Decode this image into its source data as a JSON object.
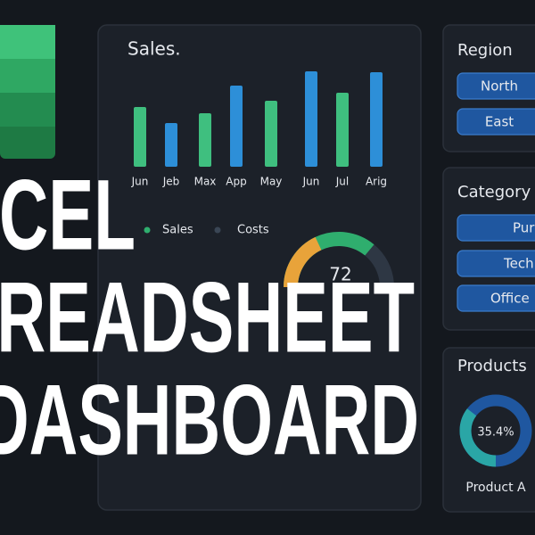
{
  "sales_panel": {
    "title": "Sales.",
    "chart": {
      "type": "bar",
      "categories": [
        "Jun",
        "Jeb",
        "Max",
        "App",
        "May",
        "Jun",
        "Jul",
        "Arig"
      ],
      "values": [
        67,
        49,
        60,
        91,
        74,
        107,
        83,
        106
      ],
      "colors": [
        "#3fbf7f",
        "#2d8fd8"
      ]
    },
    "legend": [
      {
        "name": "Sales",
        "color": "#2fae6e"
      },
      {
        "name": "Costs",
        "color": "#3a4655"
      }
    ],
    "gauge": {
      "value": 72,
      "range": [
        0,
        100
      ]
    }
  },
  "headline": [
    "EXCEL",
    "SPREADSHEET",
    "DASHBOARD"
  ],
  "region": {
    "title": "Region",
    "options": [
      "North",
      "East"
    ]
  },
  "category": {
    "title": "Category",
    "options": [
      "Pur",
      "Tech",
      "Office"
    ]
  },
  "products": {
    "title": "Products",
    "donut": {
      "value": 35.4,
      "label": "35.4%"
    },
    "caption": "Product A"
  }
}
